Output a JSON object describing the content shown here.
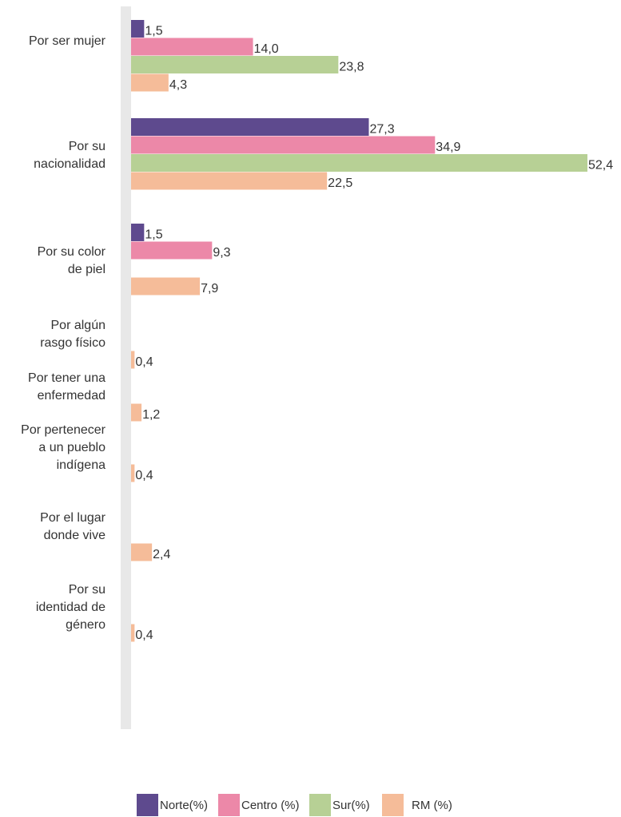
{
  "chart_data": {
    "type": "bar",
    "orientation": "horizontal",
    "title": "",
    "xlabel": "",
    "ylabel": "",
    "xlim": [
      0,
      52.4
    ],
    "grid": false,
    "legend_position": "bottom",
    "categories": [
      "Por ser mujer",
      "Por su nacionalidad",
      "Por su color de piel",
      "Por algún rasgo físico",
      "Por tener una enfermedad",
      "Por pertenecer a un pueblo indígena",
      "Por el lugar donde vive",
      "Por su identidad de género"
    ],
    "category_lines": [
      [
        "Por ser mujer"
      ],
      [
        "Por su",
        "nacionalidad"
      ],
      [
        "Por su color",
        "de piel"
      ],
      [
        "Por algún",
        "rasgo físico"
      ],
      [
        "Por tener una",
        "enfermedad"
      ],
      [
        "Por pertenecer",
        "a un pueblo",
        "indígena"
      ],
      [
        "Por el lugar",
        "donde vive"
      ],
      [
        "Por su",
        "identidad de",
        "género"
      ]
    ],
    "series": [
      {
        "name": "Norte(%)",
        "color": "#5e4a8e",
        "values": [
          1.5,
          27.3,
          1.5,
          null,
          null,
          null,
          null,
          null
        ],
        "labels": [
          "1,5",
          "27,3",
          "1,5",
          "",
          "",
          "",
          "",
          ""
        ]
      },
      {
        "name": "Centro (%)",
        "color": "#ec88a8",
        "values": [
          14.0,
          34.9,
          9.3,
          null,
          null,
          null,
          null,
          null
        ],
        "labels": [
          "14,0",
          "34,9",
          "9,3",
          "",
          "",
          "",
          "",
          ""
        ]
      },
      {
        "name": "Sur(%)",
        "color": "#b7d095",
        "values": [
          23.8,
          52.4,
          null,
          null,
          null,
          null,
          null,
          null
        ],
        "labels": [
          "23,8",
          "52,4",
          "",
          "",
          "",
          "",
          "",
          ""
        ]
      },
      {
        "name": "RM (%)",
        "color": "#f5bc99",
        "values": [
          4.3,
          22.5,
          7.9,
          0.4,
          1.2,
          0.4,
          2.4,
          0.4
        ],
        "labels": [
          "4,3",
          "22,5",
          "7,9",
          "0,4",
          "1,2",
          "0,4",
          "2,4",
          "0,4"
        ]
      }
    ]
  }
}
